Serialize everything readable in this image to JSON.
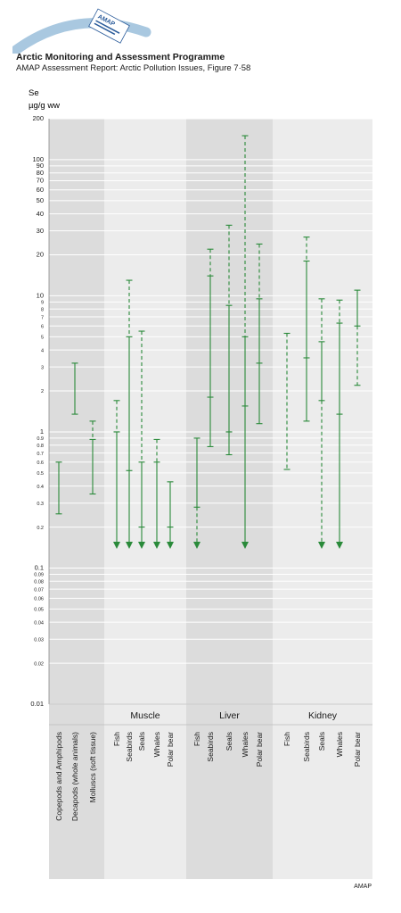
{
  "header": {
    "logo_text": "AMAP",
    "title": "Arctic Monitoring and Assessment Programme",
    "subtitle": "AMAP Assessment Report: Arctic Pollution Issues, Figure 7·58"
  },
  "footer": {
    "credit": "AMAP"
  },
  "colors": {
    "series": "#2a8a3a",
    "panel_dark": "#dcdcdc",
    "panel_light": "#ececec",
    "grid": "#ffffff"
  },
  "chart_data": {
    "type": "range",
    "ylabel_line1": "Se",
    "ylabel_line2": "µg/g ww",
    "yscale": "log",
    "ylim": [
      0.01,
      200
    ],
    "yticks": [
      {
        "v": 200,
        "label": "200"
      },
      {
        "v": 100,
        "label": "100"
      },
      {
        "v": 90,
        "label": "90"
      },
      {
        "v": 80,
        "label": "80"
      },
      {
        "v": 70,
        "label": "70"
      },
      {
        "v": 60,
        "label": "60"
      },
      {
        "v": 50,
        "label": "50"
      },
      {
        "v": 40,
        "label": "40"
      },
      {
        "v": 30,
        "label": "30"
      },
      {
        "v": 20,
        "label": "20"
      },
      {
        "v": 10,
        "label": "10"
      },
      {
        "v": 9,
        "label": "9"
      },
      {
        "v": 8,
        "label": "8"
      },
      {
        "v": 7,
        "label": "7"
      },
      {
        "v": 6,
        "label": "6"
      },
      {
        "v": 5,
        "label": "5"
      },
      {
        "v": 4,
        "label": "4"
      },
      {
        "v": 3,
        "label": "3"
      },
      {
        "v": 2,
        "label": "2"
      },
      {
        "v": 1,
        "label": "1"
      },
      {
        "v": 0.9,
        "label": "0.9"
      },
      {
        "v": 0.8,
        "label": "0.8"
      },
      {
        "v": 0.7,
        "label": "0.7"
      },
      {
        "v": 0.6,
        "label": "0.6"
      },
      {
        "v": 0.5,
        "label": "0.5"
      },
      {
        "v": 0.4,
        "label": "0.4"
      },
      {
        "v": 0.3,
        "label": "0.3"
      },
      {
        "v": 0.2,
        "label": "0.2"
      },
      {
        "v": 0.1,
        "label": "0.1"
      },
      {
        "v": 0.09,
        "label": "0.09"
      },
      {
        "v": 0.08,
        "label": "0.08"
      },
      {
        "v": 0.07,
        "label": "0.07"
      },
      {
        "v": 0.06,
        "label": "0.06"
      },
      {
        "v": 0.05,
        "label": "0.05"
      },
      {
        "v": 0.04,
        "label": "0.04"
      },
      {
        "v": 0.03,
        "label": "0.03"
      },
      {
        "v": 0.02,
        "label": "0.02"
      },
      {
        "v": 0.01,
        "label": "0.01"
      }
    ],
    "groups": [
      {
        "name": "",
        "shade": "dark",
        "series": [
          {
            "name": "Copepods and Amphipods",
            "min": 0.25,
            "max": 0.6,
            "segments": [
              {
                "from": 0.25,
                "to": 0.6,
                "style": "solid"
              }
            ]
          },
          {
            "name": "Decapods (whole animals)",
            "min": 1.35,
            "max": 3.2,
            "segments": [
              {
                "from": 1.35,
                "to": 3.2,
                "style": "solid"
              }
            ]
          },
          {
            "name": "Molluscs (soft tissue)",
            "min": 0.35,
            "max": 1.2,
            "mark": 0.88,
            "segments": [
              {
                "from": 0.35,
                "to": 0.88,
                "style": "solid"
              },
              {
                "from": 0.88,
                "to": 1.2,
                "style": "dashed"
              }
            ]
          }
        ]
      },
      {
        "name": "Muscle",
        "shade": "light",
        "series": [
          {
            "name": "Fish",
            "min": "<0.2",
            "max": 1.7,
            "mark": 1.0,
            "arrow": true,
            "segments": [
              {
                "from": 0.16,
                "to": 1.0,
                "style": "solid"
              },
              {
                "from": 1.0,
                "to": 1.7,
                "style": "dashed"
              }
            ]
          },
          {
            "name": "Seabirds",
            "min": "<0.2",
            "max": 13,
            "marks": [
              0.52,
              5.0
            ],
            "arrow": true,
            "segments": [
              {
                "from": 0.16,
                "to": 0.52,
                "style": "solid"
              },
              {
                "from": 0.52,
                "to": 5.0,
                "style": "solid"
              },
              {
                "from": 5.0,
                "to": 13,
                "style": "dashed"
              }
            ]
          },
          {
            "name": "Seals",
            "min": "<0.2",
            "max": 5.5,
            "marks": [
              0.2,
              0.6
            ],
            "arrow": true,
            "segments": [
              {
                "from": 0.16,
                "to": 0.6,
                "style": "solid"
              },
              {
                "from": 0.6,
                "to": 5.5,
                "style": "dashed"
              }
            ]
          },
          {
            "name": "Whales",
            "min": "<0.2",
            "max": 0.88,
            "mark": 0.6,
            "arrow": true,
            "segments": [
              {
                "from": 0.16,
                "to": 0.6,
                "style": "solid"
              },
              {
                "from": 0.6,
                "to": 0.88,
                "style": "dashed"
              }
            ]
          },
          {
            "name": "Polar bear",
            "min": "<0.2",
            "max": 0.43,
            "mark": 0.2,
            "arrow": true,
            "segments": [
              {
                "from": 0.16,
                "to": 0.43,
                "style": "solid"
              }
            ]
          }
        ]
      },
      {
        "name": "Liver",
        "shade": "dark",
        "series": [
          {
            "name": "Fish",
            "min": "<0.2",
            "max": 0.9,
            "mark": 0.28,
            "arrow": true,
            "segments": [
              {
                "from": 0.28,
                "to": 0.9,
                "style": "solid"
              },
              {
                "from": 0.16,
                "to": 0.28,
                "style": "dashed"
              }
            ]
          },
          {
            "name": "Seabirds",
            "min": 0.78,
            "max": 22,
            "marks": [
              1.8,
              14
            ],
            "segments": [
              {
                "from": 0.78,
                "to": 1.8,
                "style": "solid"
              },
              {
                "from": 1.8,
                "to": 14,
                "style": "solid"
              },
              {
                "from": 14,
                "to": 22,
                "style": "dashed"
              }
            ]
          },
          {
            "name": "Seals",
            "min": 0.68,
            "max": 33,
            "marks": [
              1.0,
              8.5
            ],
            "segments": [
              {
                "from": 0.68,
                "to": 1.0,
                "style": "solid"
              },
              {
                "from": 1.0,
                "to": 8.5,
                "style": "solid"
              },
              {
                "from": 8.5,
                "to": 33,
                "style": "dashed"
              }
            ]
          },
          {
            "name": "Whales",
            "min": "<0.2",
            "max": 150,
            "marks": [
              1.55,
              5.0
            ],
            "arrow": true,
            "segments": [
              {
                "from": 0.16,
                "to": 1.55,
                "style": "solid"
              },
              {
                "from": 1.55,
                "to": 5.0,
                "style": "solid"
              },
              {
                "from": 5.0,
                "to": 150,
                "style": "dashed"
              }
            ]
          },
          {
            "name": "Polar bear",
            "min": 1.15,
            "max": 24,
            "marks": [
              3.2,
              9.5
            ],
            "segments": [
              {
                "from": 1.15,
                "to": 3.2,
                "style": "solid"
              },
              {
                "from": 3.2,
                "to": 9.5,
                "style": "solid"
              },
              {
                "from": 9.5,
                "to": 24,
                "style": "dashed"
              }
            ]
          }
        ]
      },
      {
        "name": "Kidney",
        "shade": "light",
        "series": [
          {
            "name": "Fish",
            "min": 0.53,
            "max": 5.3,
            "segments": [
              {
                "from": 0.53,
                "to": 5.3,
                "style": "dashed"
              }
            ]
          },
          {
            "name": "Seabirds",
            "min": 1.2,
            "max": 27,
            "marks": [
              3.5,
              18
            ],
            "segments": [
              {
                "from": 1.2,
                "to": 3.5,
                "style": "solid"
              },
              {
                "from": 3.5,
                "to": 18,
                "style": "solid"
              },
              {
                "from": 18,
                "to": 27,
                "style": "dashed"
              }
            ]
          },
          {
            "name": "Seals",
            "min": "<0.2",
            "max": 9.5,
            "marks": [
              1.7,
              4.6
            ],
            "arrow": true,
            "segments": [
              {
                "from": 0.16,
                "to": 1.7,
                "style": "dashed"
              },
              {
                "from": 1.7,
                "to": 4.6,
                "style": "solid"
              },
              {
                "from": 4.6,
                "to": 9.5,
                "style": "dashed"
              }
            ]
          },
          {
            "name": "Whales",
            "min": "<0.2",
            "max": 9.3,
            "marks": [
              1.35,
              6.3
            ],
            "arrow": true,
            "segments": [
              {
                "from": 0.16,
                "to": 1.35,
                "style": "solid"
              },
              {
                "from": 1.35,
                "to": 6.3,
                "style": "solid"
              },
              {
                "from": 6.3,
                "to": 9.3,
                "style": "dashed"
              }
            ]
          },
          {
            "name": "Polar bear",
            "min": 2.2,
            "max": 11,
            "mark": 6.0,
            "segments": [
              {
                "from": 2.2,
                "to": 6.0,
                "style": "dashed"
              },
              {
                "from": 6.0,
                "to": 11,
                "style": "solid"
              }
            ]
          }
        ]
      }
    ]
  }
}
